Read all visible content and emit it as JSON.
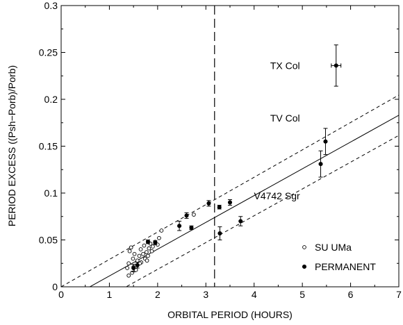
{
  "chart_data": {
    "type": "scatter",
    "xlabel": "ORBITAL PERIOD (HOURS)",
    "ylabel": "PERIOD EXCESS ((Psh−Porb)/Porb)",
    "xlim": [
      0,
      7
    ],
    "ylim": [
      0,
      0.3
    ],
    "x_ticks": [
      "0",
      "1",
      "2",
      "3",
      "4",
      "5",
      "6",
      "7"
    ],
    "y_ticks": [
      "0",
      "0.05",
      "0.1",
      "0.15",
      "0.2",
      "0.25",
      "0.3"
    ],
    "grid": false,
    "legend_position": "lower-right",
    "colors": {
      "axis": "#000000",
      "marker": "#000000"
    },
    "vertical_line_x": 3.18,
    "fit_line": {
      "x": [
        0,
        7
      ],
      "y": [
        -0.017,
        0.183
      ]
    },
    "bound_lines": [
      {
        "x": [
          0,
          7
        ],
        "y": [
          0.0,
          0.2045
        ]
      },
      {
        "x": [
          0,
          7
        ],
        "y": [
          -0.0385,
          0.1615
        ]
      }
    ],
    "series": [
      {
        "name": "SU UMa",
        "marker": "open-circle",
        "points": [
          {
            "x": 1.37,
            "y": 0.02
          },
          {
            "x": 1.4,
            "y": 0.025
          },
          {
            "x": 1.42,
            "y": 0.038
          },
          {
            "x": 1.45,
            "y": 0.042
          },
          {
            "x": 1.47,
            "y": 0.015
          },
          {
            "x": 1.49,
            "y": 0.03
          },
          {
            "x": 1.5,
            "y": 0.021
          },
          {
            "x": 1.52,
            "y": 0.035
          },
          {
            "x": 1.55,
            "y": 0.018
          },
          {
            "x": 1.58,
            "y": 0.028
          },
          {
            "x": 1.62,
            "y": 0.033
          },
          {
            "x": 1.65,
            "y": 0.04
          },
          {
            "x": 1.66,
            "y": 0.026
          },
          {
            "x": 1.7,
            "y": 0.035
          },
          {
            "x": 1.72,
            "y": 0.044
          },
          {
            "x": 1.74,
            "y": 0.03
          },
          {
            "x": 1.77,
            "y": 0.037
          },
          {
            "x": 1.8,
            "y": 0.033
          },
          {
            "x": 1.82,
            "y": 0.041
          },
          {
            "x": 1.85,
            "y": 0.046
          },
          {
            "x": 1.88,
            "y": 0.038
          },
          {
            "x": 1.9,
            "y": 0.043
          },
          {
            "x": 1.95,
            "y": 0.048
          },
          {
            "x": 2.0,
            "y": 0.045
          },
          {
            "x": 2.03,
            "y": 0.052
          },
          {
            "x": 2.08,
            "y": 0.06
          },
          {
            "x": 2.75,
            "y": 0.077
          },
          {
            "x": 1.4,
            "y": 0.012
          },
          {
            "x": 1.63,
            "y": 0.025
          },
          {
            "x": 1.78,
            "y": 0.028
          }
        ]
      },
      {
        "name": "PERMANENT",
        "marker": "filled-circle",
        "points": [
          {
            "x": 1.5,
            "y": 0.02,
            "yerr": 0.004
          },
          {
            "x": 1.58,
            "y": 0.023,
            "yerr": 0.003
          },
          {
            "x": 1.8,
            "y": 0.048,
            "yerr": 0.002
          },
          {
            "x": 1.95,
            "y": 0.047,
            "yerr": 0.002
          },
          {
            "x": 2.45,
            "y": 0.065,
            "yerr": 0.005
          },
          {
            "x": 2.6,
            "y": 0.076,
            "yerr": 0.003
          },
          {
            "x": 2.7,
            "y": 0.063,
            "yerr": 0.002
          },
          {
            "x": 3.06,
            "y": 0.089,
            "yerr": 0.003
          },
          {
            "x": 3.28,
            "y": 0.085,
            "yerr": 0.002
          },
          {
            "x": 3.29,
            "y": 0.057,
            "yerr": 0.007
          },
          {
            "x": 3.5,
            "y": 0.09,
            "yerr": 0.003
          },
          {
            "x": 3.72,
            "y": 0.07,
            "yerr": 0.005
          },
          {
            "x": 5.38,
            "y": 0.131,
            "yerr": 0.014
          },
          {
            "x": 5.48,
            "y": 0.155,
            "yerr": 0.014
          },
          {
            "x": 5.7,
            "y": 0.236,
            "yerr": 0.022,
            "xerr": 0.1
          }
        ]
      }
    ],
    "annotations": [
      {
        "text": "TX Col",
        "x": 4.95,
        "y": 0.236
      },
      {
        "text": "TV Col",
        "x": 4.95,
        "y": 0.18
      },
      {
        "text": "V4742 Sgr",
        "x": 4.95,
        "y": 0.097
      }
    ]
  }
}
